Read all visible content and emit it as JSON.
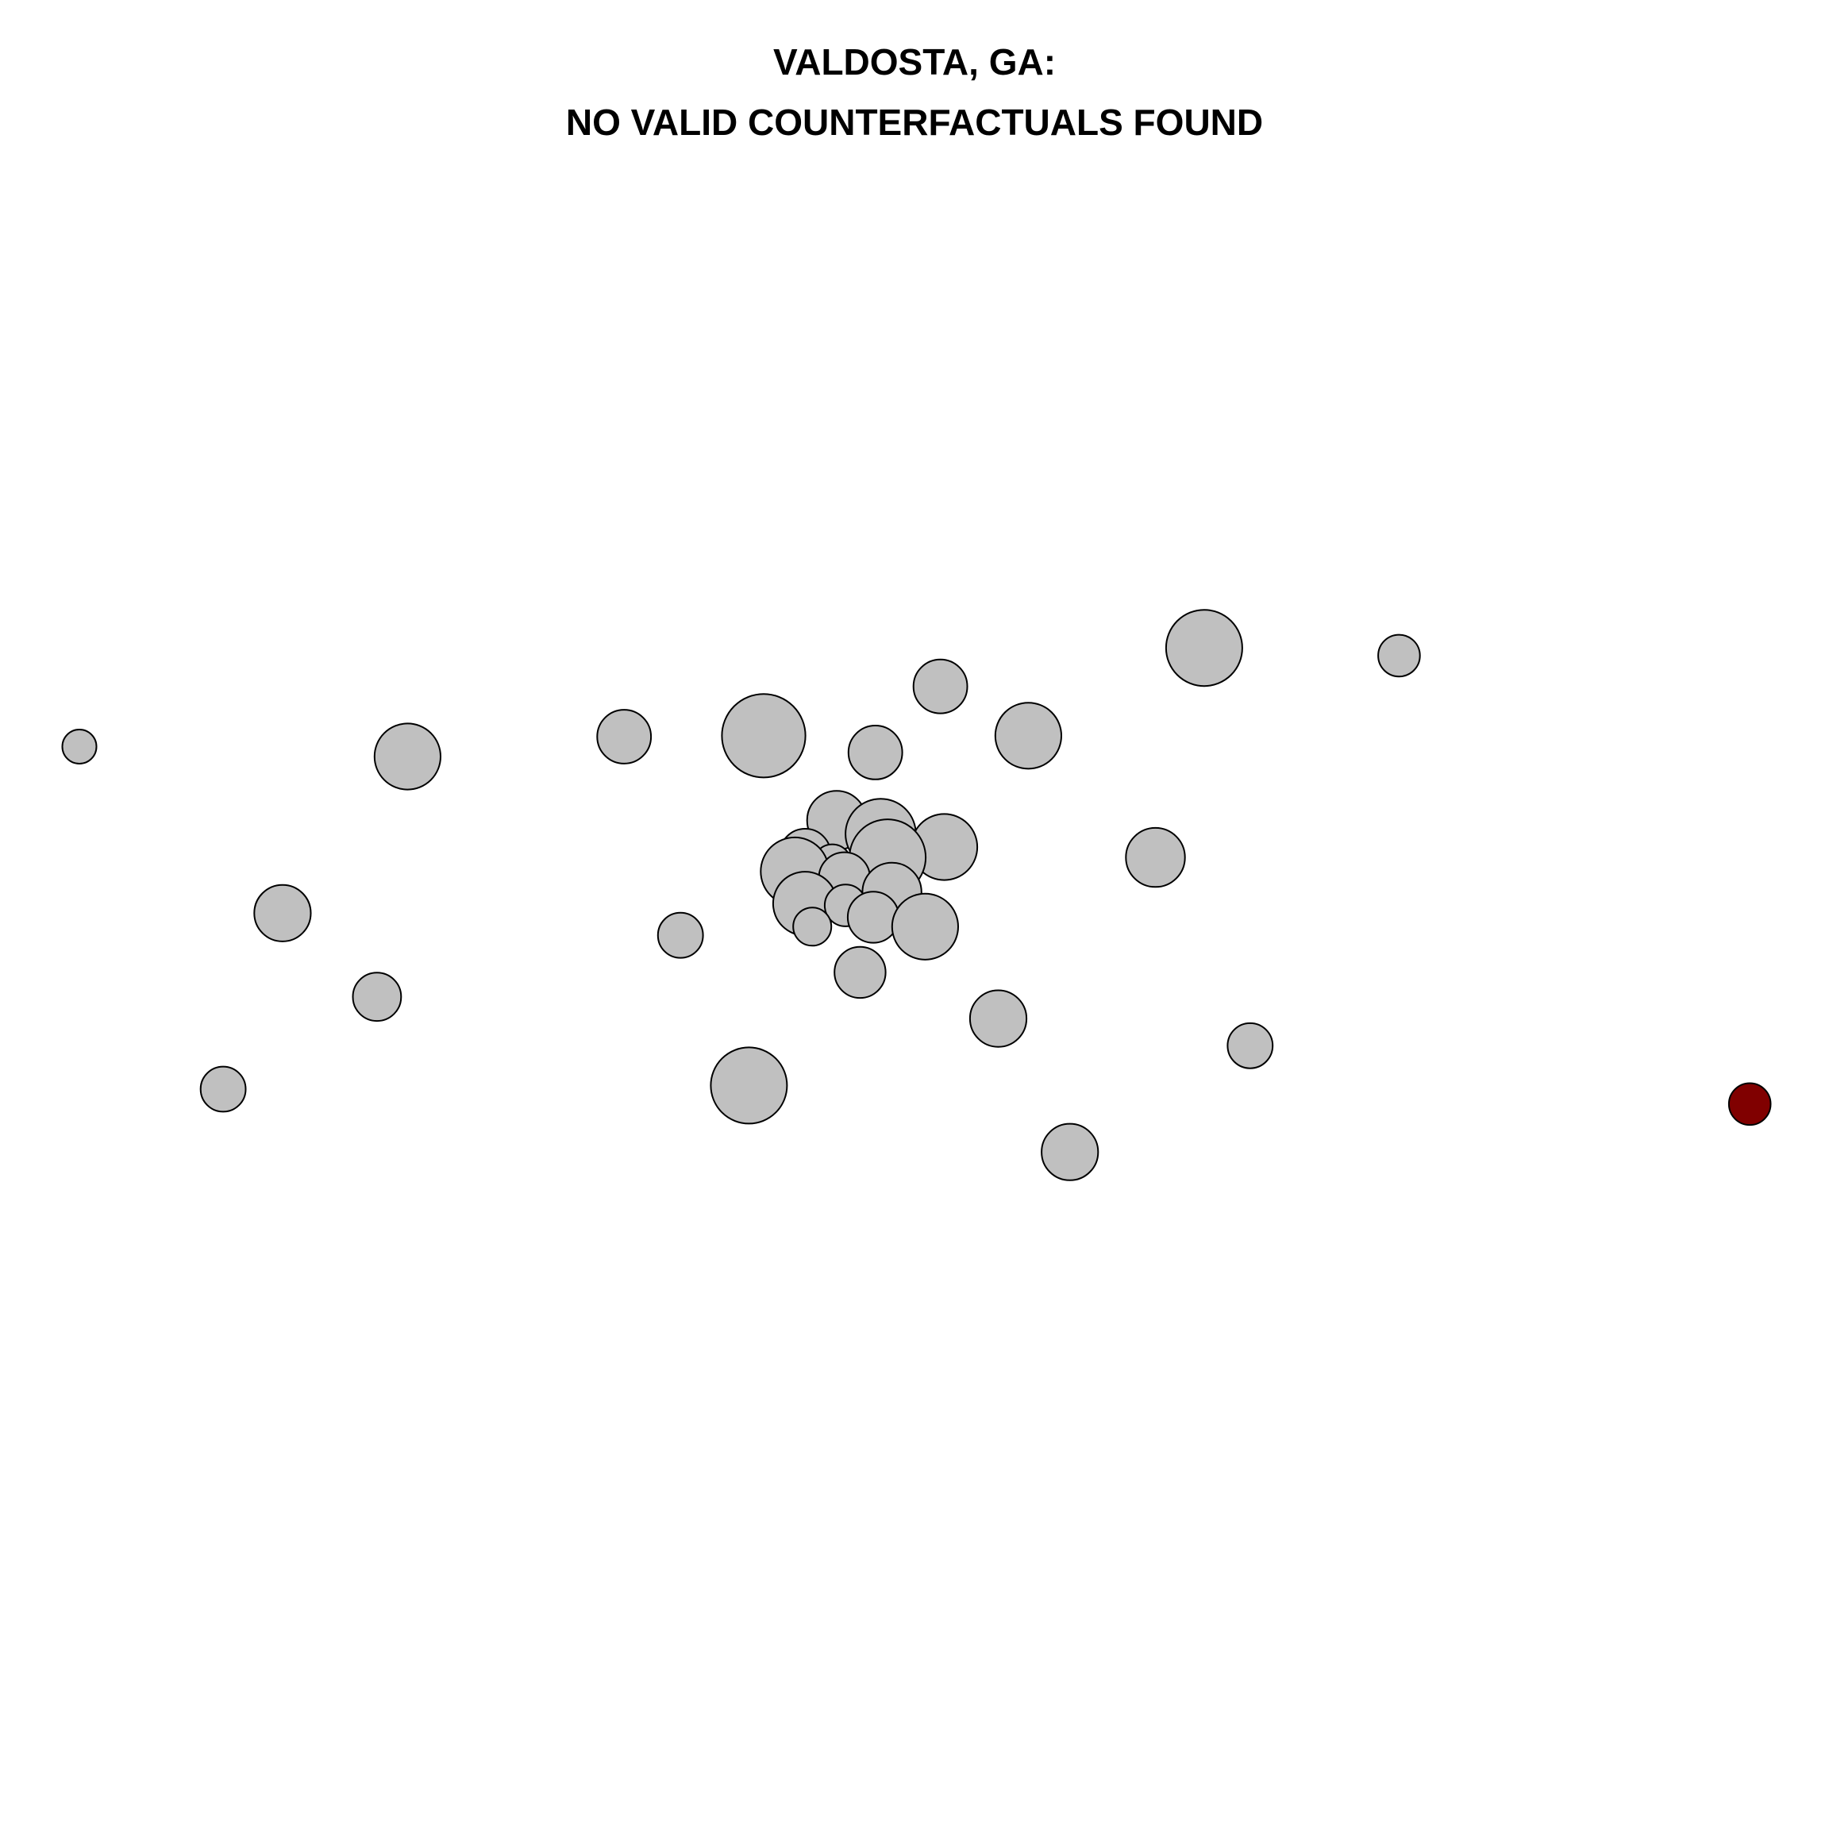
{
  "chart_data": {
    "type": "scatter",
    "title_line1": "VALDOSTA, GA:",
    "title_line2": "NO VALID COUNTERFACTUALS FOUND",
    "xlabel": "",
    "ylabel": "",
    "axes_shown": false,
    "grid": false,
    "xlim": [
      0,
      1
    ],
    "ylim": [
      0,
      1
    ],
    "colors": {
      "default_fill": "#c0c0c0",
      "highlight_fill": "#800000",
      "stroke": "#000000"
    },
    "points": [
      {
        "x": 0.9935,
        "y": 0.3765,
        "size": 0.3,
        "highlight": true
      },
      {
        "x": 0.669,
        "y": 0.8805,
        "size": 1.0
      },
      {
        "x": 0.7849,
        "y": 0.872,
        "size": 0.3
      },
      {
        "x": 0.5121,
        "y": 0.838,
        "size": 0.5
      },
      {
        "x": 0.407,
        "y": 0.7835,
        "size": 1.2
      },
      {
        "x": 0.324,
        "y": 0.7825,
        "size": 0.5
      },
      {
        "x": 0.5644,
        "y": 0.7835,
        "size": 0.75
      },
      {
        "x": 0.0,
        "y": 0.7715,
        "size": 0.2
      },
      {
        "x": 0.1952,
        "y": 0.7605,
        "size": 0.75
      },
      {
        "x": 0.4734,
        "y": 0.765,
        "size": 0.5
      },
      {
        "x": 0.4504,
        "y": 0.69,
        "size": 0.6
      },
      {
        "x": 0.4766,
        "y": 0.675,
        "size": 0.85
      },
      {
        "x": 0.5144,
        "y": 0.6605,
        "size": 0.75
      },
      {
        "x": 0.4317,
        "y": 0.6525,
        "size": 0.45
      },
      {
        "x": 0.4478,
        "y": 0.6425,
        "size": 0.25
      },
      {
        "x": 0.4807,
        "y": 0.649,
        "size": 1.0
      },
      {
        "x": 0.4255,
        "y": 0.6335,
        "size": 0.8
      },
      {
        "x": 0.455,
        "y": 0.6265,
        "size": 0.45
      },
      {
        "x": 0.64,
        "y": 0.649,
        "size": 0.6
      },
      {
        "x": 0.4833,
        "y": 0.6105,
        "size": 0.6
      },
      {
        "x": 0.4316,
        "y": 0.598,
        "size": 0.7
      },
      {
        "x": 0.4557,
        "y": 0.596,
        "size": 0.3
      },
      {
        "x": 0.4722,
        "y": 0.583,
        "size": 0.45
      },
      {
        "x": 0.503,
        "y": 0.5725,
        "size": 0.75
      },
      {
        "x": 0.4359,
        "y": 0.5725,
        "size": 0.25
      },
      {
        "x": 0.3575,
        "y": 0.563,
        "size": 0.35
      },
      {
        "x": 0.1208,
        "y": 0.5875,
        "size": 0.55
      },
      {
        "x": 0.4643,
        "y": 0.522,
        "size": 0.45
      },
      {
        "x": 0.177,
        "y": 0.495,
        "size": 0.4
      },
      {
        "x": 0.5465,
        "y": 0.471,
        "size": 0.55
      },
      {
        "x": 0.6963,
        "y": 0.441,
        "size": 0.35
      },
      {
        "x": 0.0855,
        "y": 0.393,
        "size": 0.35
      },
      {
        "x": 0.3982,
        "y": 0.397,
        "size": 1.0
      },
      {
        "x": 0.5891,
        "y": 0.3235,
        "size": 0.55
      }
    ]
  }
}
